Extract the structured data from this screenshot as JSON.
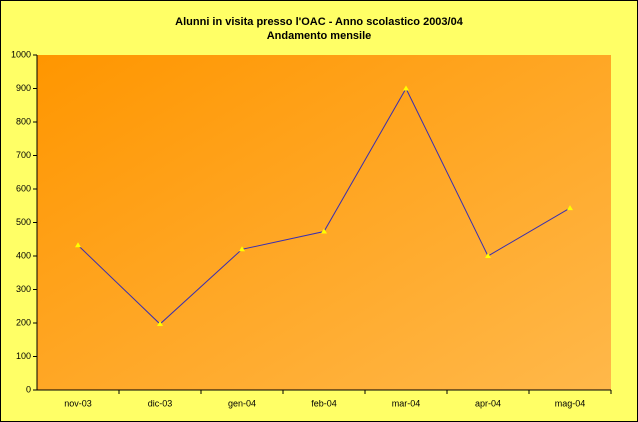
{
  "chart_data": {
    "type": "line",
    "title": "Alunni in visita presso l'OAC - Anno scolastico 2003/04",
    "subtitle": "Andamento mensile",
    "categories": [
      "nov-03",
      "dic-03",
      "gen-04",
      "feb-04",
      "mar-04",
      "apr-04",
      "mag-04"
    ],
    "series": [
      {
        "color": "#3a2fb0",
        "values": [
          432,
          197,
          420,
          473,
          900,
          400,
          543
        ]
      }
    ],
    "ylim": [
      0,
      1000
    ],
    "yticks": [
      0,
      100,
      200,
      300,
      400,
      500,
      600,
      700,
      800,
      900,
      1000
    ]
  }
}
